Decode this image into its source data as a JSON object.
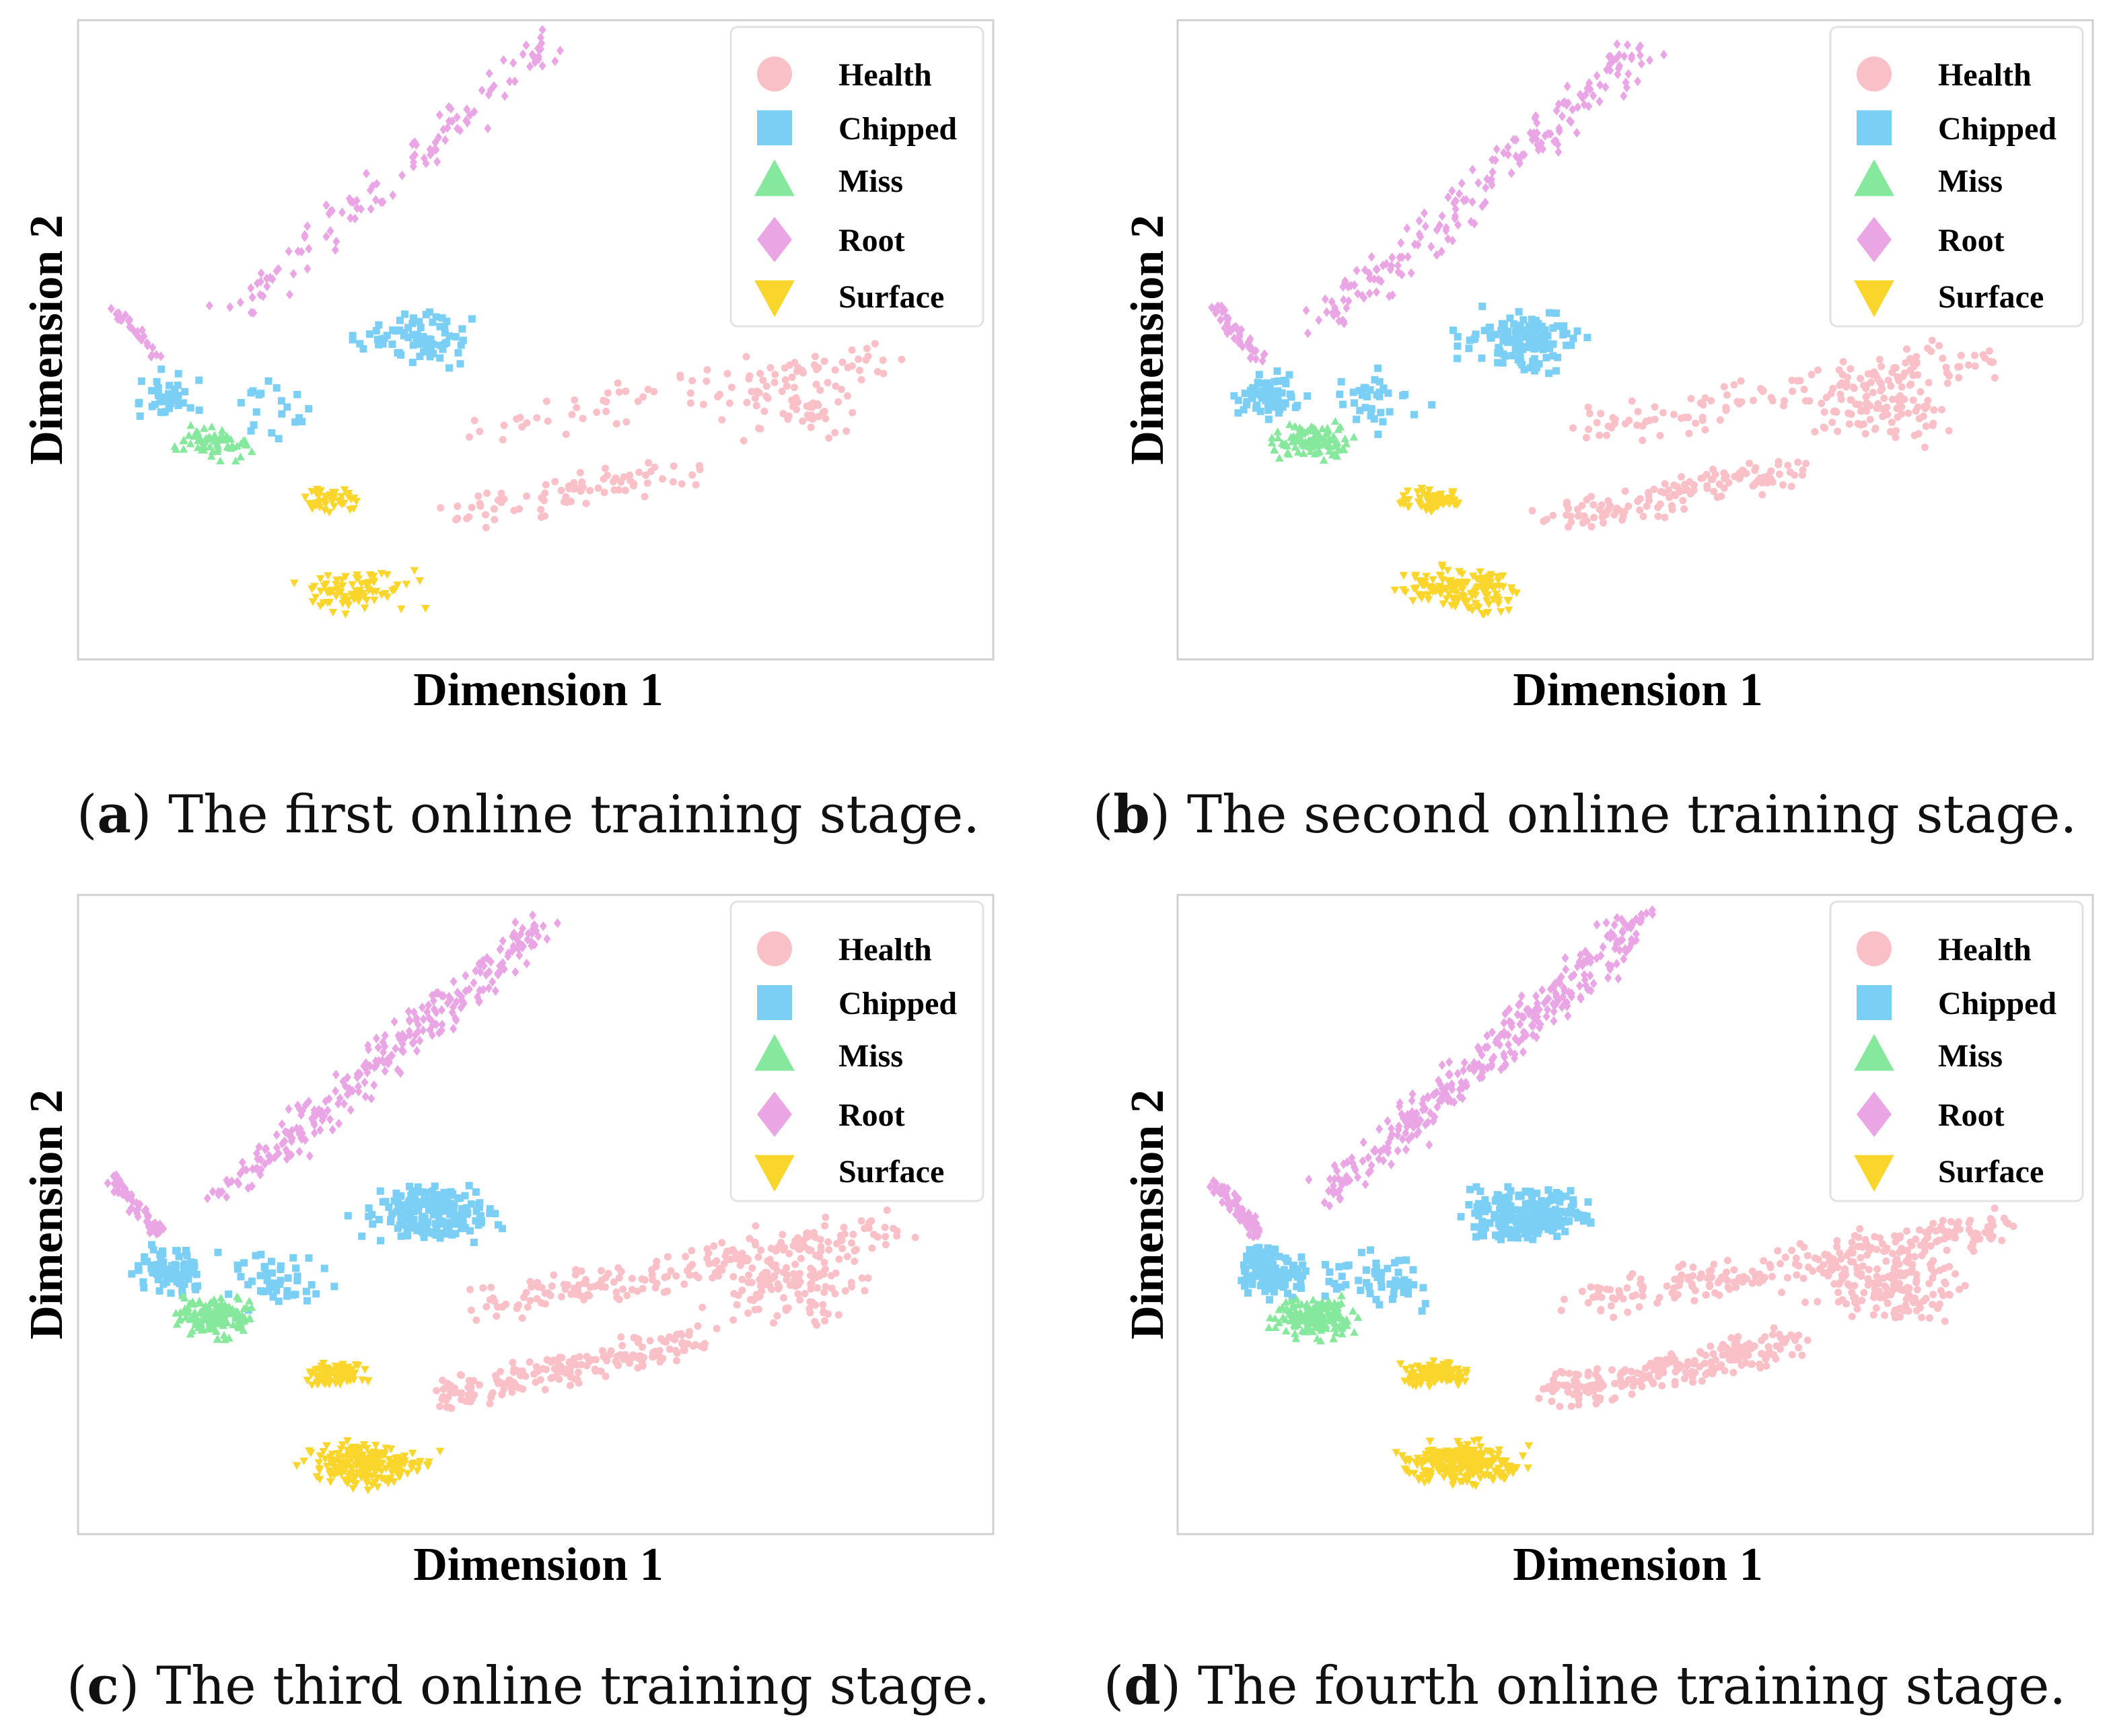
{
  "chart_data": [
    {
      "type": "scatter",
      "panel_letter": "a",
      "caption": "The first online training stage.",
      "xlabel": "Dimension 1",
      "ylabel": "Dimension 2",
      "density": 0.6,
      "legend": [
        "Health",
        "Chipped",
        "Miss",
        "Root",
        "Surface"
      ]
    },
    {
      "type": "scatter",
      "panel_letter": "b",
      "caption": "The second online training stage.",
      "xlabel": "Dimension 1",
      "ylabel": "Dimension 2",
      "density": 1.0,
      "legend": [
        "Health",
        "Chipped",
        "Miss",
        "Root",
        "Surface"
      ]
    },
    {
      "type": "scatter",
      "panel_letter": "c",
      "caption": "The third online training stage.",
      "xlabel": "Dimension 1",
      "ylabel": "Dimension 2",
      "density": 1.4,
      "legend": [
        "Health",
        "Chipped",
        "Miss",
        "Root",
        "Surface"
      ]
    },
    {
      "type": "scatter",
      "panel_letter": "d",
      "caption": "The fourth online training stage.",
      "xlabel": "Dimension 1",
      "ylabel": "Dimension 2",
      "density": 1.7,
      "legend": [
        "Health",
        "Chipped",
        "Miss",
        "Root",
        "Surface"
      ]
    }
  ],
  "colors": {
    "Health": "#f9c0c8",
    "Chipped": "#7ccff4",
    "Miss": "#86e89c",
    "Root": "#e9a5e4",
    "Surface": "#fad52c"
  }
}
